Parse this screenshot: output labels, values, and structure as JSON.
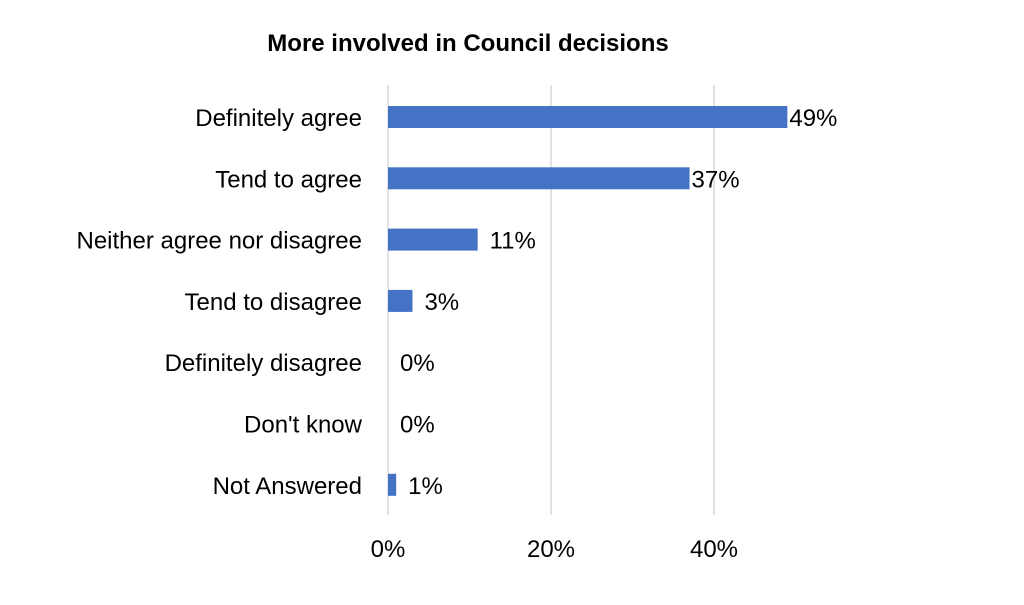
{
  "chart_data": {
    "type": "bar",
    "orientation": "horizontal",
    "title": "More involved in Council decisions",
    "categories": [
      "Definitely agree",
      "Tend to agree",
      "Neither agree nor disagree",
      "Tend to disagree",
      "Definitely disagree",
      "Don't know",
      "Not Answered"
    ],
    "values": [
      49,
      37,
      11,
      3,
      0,
      0,
      1
    ],
    "data_labels": [
      "49%",
      "37%",
      "11%",
      "3%",
      "0%",
      "0%",
      "1%"
    ],
    "x_ticks": [
      "0%",
      "20%",
      "40%"
    ],
    "xlim": [
      0,
      60
    ],
    "grid": true,
    "bar_color": "#4472C4",
    "gridline_color": "#D9D9D9"
  }
}
